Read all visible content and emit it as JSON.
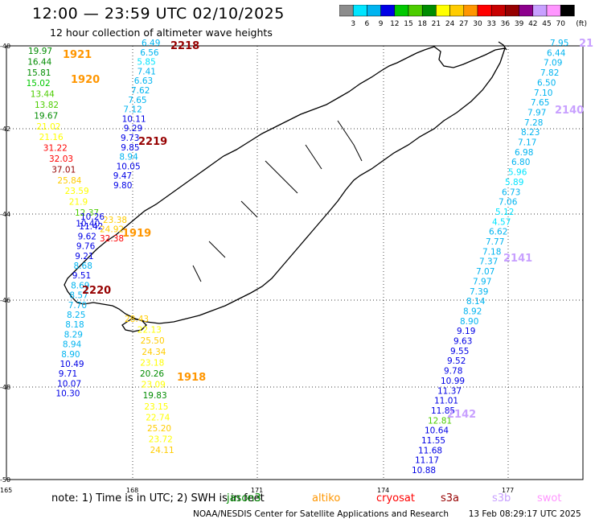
{
  "header": {
    "title": "12:00 — 23:59 UTC 02/10/2025",
    "subtitle": "12 hour collection of altimeter wave heights"
  },
  "colorbar": {
    "labels": [
      "3",
      "6",
      "9",
      "12",
      "15",
      "18",
      "21",
      "24",
      "27",
      "30",
      "33",
      "36",
      "39",
      "42",
      "45",
      "70"
    ],
    "unit": "(ft)",
    "colors": [
      "#8c8c8c",
      "#00e5ff",
      "#00b4f0",
      "#0000e6",
      "#00c800",
      "#4ccd00",
      "#008c00",
      "#ffff00",
      "#ffcc00",
      "#ff9600",
      "#ff0000",
      "#c80000",
      "#960000",
      "#8c008c",
      "#c8a0ff",
      "#ff96ff",
      "#000000"
    ]
  },
  "axes": {
    "lat_labels": [
      "-40",
      "-42",
      "-44",
      "-46",
      "-48",
      "-50"
    ],
    "lon_labels": [
      "165",
      "168",
      "171",
      "174",
      "177"
    ]
  },
  "tracks": [
    {
      "color": "#0a0a0a",
      "points": [
        {
          "v": "19.97",
          "c": "#008c00"
        },
        {
          "v": "16.44",
          "c": "#008c00"
        },
        {
          "v": "15.81",
          "c": "#008c00"
        },
        {
          "v": "15.02",
          "c": "#00c800"
        },
        {
          "v": "13.44",
          "c": "#4ccd00"
        },
        {
          "v": "13.82",
          "c": "#4ccd00"
        },
        {
          "v": "19.67",
          "c": "#008c00"
        },
        {
          "v": "21.02",
          "c": "#ffff00"
        },
        {
          "v": "21.16",
          "c": "#ffff00"
        },
        {
          "v": "31.22",
          "c": "#ff0000"
        },
        {
          "v": "32.03",
          "c": "#ff0000"
        },
        {
          "v": "37.01",
          "c": "#960000"
        },
        {
          "v": "25.84",
          "c": "#ffcc00"
        },
        {
          "v": "23.59",
          "c": "#ffff00"
        },
        {
          "v": "21.9",
          "c": "#ffff00"
        },
        {
          "v": "12.37",
          "c": "#4ccd00"
        },
        {
          "v": "10.40",
          "c": "#0000e6"
        }
      ]
    },
    {
      "points": [
        {
          "v": "6.49",
          "c": "#00b4f0"
        },
        {
          "v": "6.56",
          "c": "#00b4f0"
        },
        {
          "v": "5.85",
          "c": "#00e5ff"
        },
        {
          "v": "7.41",
          "c": "#00b4f0"
        },
        {
          "v": "6.63",
          "c": "#00b4f0"
        },
        {
          "v": "7.62",
          "c": "#00b4f0"
        },
        {
          "v": "7.65",
          "c": "#00b4f0"
        },
        {
          "v": "7.12",
          "c": "#00b4f0"
        },
        {
          "v": "10.11",
          "c": "#0000e6"
        },
        {
          "v": "9.29",
          "c": "#0000e6"
        },
        {
          "v": "9.73",
          "c": "#0000e6"
        },
        {
          "v": "9.85",
          "c": "#0000e6"
        },
        {
          "v": "8.94",
          "c": "#00b4f0"
        },
        {
          "v": "10.05",
          "c": "#0000e6"
        },
        {
          "v": "9.47",
          "c": "#0000e6"
        },
        {
          "v": "9.80",
          "c": "#0000e6"
        }
      ]
    },
    {
      "points": [
        {
          "v": "10.26",
          "c": "#0000e6"
        },
        {
          "v": "11.42",
          "c": "#0000e6"
        },
        {
          "v": "9.62",
          "c": "#0000e6"
        },
        {
          "v": "9.76",
          "c": "#0000e6"
        },
        {
          "v": "9.21",
          "c": "#0000e6"
        },
        {
          "v": "8.68",
          "c": "#00b4f0"
        },
        {
          "v": "9.51",
          "c": "#0000e6"
        },
        {
          "v": "8.69",
          "c": "#00b4f0"
        },
        {
          "v": "8.57",
          "c": "#00b4f0"
        },
        {
          "v": "7.70",
          "c": "#00b4f0"
        },
        {
          "v": "8.25",
          "c": "#00b4f0"
        },
        {
          "v": "8.18",
          "c": "#00b4f0"
        },
        {
          "v": "8.29",
          "c": "#00b4f0"
        },
        {
          "v": "8.94",
          "c": "#00b4f0"
        },
        {
          "v": "8.90",
          "c": "#00b4f0"
        },
        {
          "v": "10.49",
          "c": "#0000e6"
        },
        {
          "v": "9.71",
          "c": "#0000e6"
        },
        {
          "v": "10.07",
          "c": "#0000e6"
        },
        {
          "v": "10.30",
          "c": "#0000e6"
        }
      ]
    },
    {
      "points": [
        {
          "v": "23.38",
          "c": "#ffcc00"
        },
        {
          "v": "24.92",
          "c": "#ffcc00"
        },
        {
          "v": "32.38",
          "c": "#ff0000"
        }
      ]
    },
    {
      "points": [
        {
          "v": "28.43",
          "c": "#ffcc00"
        },
        {
          "v": "22.13",
          "c": "#ffff00"
        },
        {
          "v": "25.50",
          "c": "#ffcc00"
        },
        {
          "v": "24.34",
          "c": "#ffcc00"
        },
        {
          "v": "23.18",
          "c": "#ffff00"
        },
        {
          "v": "20.26",
          "c": "#008c00"
        },
        {
          "v": "23.09",
          "c": "#ffff00"
        },
        {
          "v": "19.83",
          "c": "#008c00"
        },
        {
          "v": "23.15",
          "c": "#ffff00"
        },
        {
          "v": "22.74",
          "c": "#ffff00"
        },
        {
          "v": "25.20",
          "c": "#ffcc00"
        },
        {
          "v": "23.72",
          "c": "#ffff00"
        },
        {
          "v": "24.11",
          "c": "#ffcc00"
        }
      ]
    },
    {
      "points": [
        {
          "v": "7.95",
          "c": "#00b4f0"
        },
        {
          "v": "6.44",
          "c": "#00b4f0"
        },
        {
          "v": "7.09",
          "c": "#00b4f0"
        },
        {
          "v": "7.82",
          "c": "#00b4f0"
        },
        {
          "v": "6.50",
          "c": "#00b4f0"
        },
        {
          "v": "7.10",
          "c": "#00b4f0"
        },
        {
          "v": "7.65",
          "c": "#00b4f0"
        },
        {
          "v": "7.97",
          "c": "#00b4f0"
        },
        {
          "v": "7.28",
          "c": "#00b4f0"
        },
        {
          "v": "8.23",
          "c": "#00b4f0"
        },
        {
          "v": "7.17",
          "c": "#00b4f0"
        },
        {
          "v": "6.98",
          "c": "#00b4f0"
        },
        {
          "v": "6.80",
          "c": "#00b4f0"
        },
        {
          "v": "5.96",
          "c": "#00e5ff"
        },
        {
          "v": "5.89",
          "c": "#00e5ff"
        },
        {
          "v": "6.73",
          "c": "#00b4f0"
        },
        {
          "v": "7.06",
          "c": "#00b4f0"
        },
        {
          "v": "5.12",
          "c": "#00e5ff"
        },
        {
          "v": "4.57",
          "c": "#00e5ff"
        },
        {
          "v": "6.62",
          "c": "#00b4f0"
        },
        {
          "v": "7.77",
          "c": "#00b4f0"
        },
        {
          "v": "7.18",
          "c": "#00b4f0"
        },
        {
          "v": "7.37",
          "c": "#00b4f0"
        },
        {
          "v": "7.07",
          "c": "#00b4f0"
        },
        {
          "v": "7.97",
          "c": "#00b4f0"
        },
        {
          "v": "7.39",
          "c": "#00b4f0"
        },
        {
          "v": "8.14",
          "c": "#00b4f0"
        },
        {
          "v": "8.92",
          "c": "#00b4f0"
        },
        {
          "v": "8.90",
          "c": "#00b4f0"
        },
        {
          "v": "9.19",
          "c": "#0000e6"
        },
        {
          "v": "9.63",
          "c": "#0000e6"
        },
        {
          "v": "9.55",
          "c": "#0000e6"
        },
        {
          "v": "9.52",
          "c": "#0000e6"
        },
        {
          "v": "9.78",
          "c": "#0000e6"
        },
        {
          "v": "10.99",
          "c": "#0000e6"
        },
        {
          "v": "11.37",
          "c": "#0000e6"
        },
        {
          "v": "11.01",
          "c": "#0000e6"
        },
        {
          "v": "11.85",
          "c": "#0000e6"
        },
        {
          "v": "12.81",
          "c": "#4ccd00"
        },
        {
          "v": "10.64",
          "c": "#0000e6"
        },
        {
          "v": "11.55",
          "c": "#0000e6"
        },
        {
          "v": "11.68",
          "c": "#0000e6"
        },
        {
          "v": "11.17",
          "c": "#0000e6"
        },
        {
          "v": "10.88",
          "c": "#0000e6"
        }
      ]
    }
  ],
  "time_labels": [
    {
      "t": "2218",
      "c": "#960000"
    },
    {
      "t": "1921",
      "c": "#ff9600"
    },
    {
      "t": "1920",
      "c": "#ff9600"
    },
    {
      "t": "2219",
      "c": "#960000"
    },
    {
      "t": "1919",
      "c": "#ff9600"
    },
    {
      "t": "2220",
      "c": "#960000"
    },
    {
      "t": "1918",
      "c": "#ff9600"
    },
    {
      "t": "2140",
      "c": "#c8a0ff"
    },
    {
      "t": "2141",
      "c": "#c8a0ff"
    },
    {
      "t": "2142",
      "c": "#c8a0ff"
    },
    {
      "t": "21",
      "c": "#c8a0ff"
    }
  ],
  "footer": {
    "note": "note:  1) Time is in UTC; 2) SWH is in feet",
    "legend": [
      {
        "name": "jason3",
        "c": "#008c00"
      },
      {
        "name": "altiko",
        "c": "#ff9600"
      },
      {
        "name": "cryosat",
        "c": "#ff0000"
      },
      {
        "name": "s3a",
        "c": "#960000"
      },
      {
        "name": "s3b",
        "c": "#c8a0ff"
      },
      {
        "name": "swot",
        "c": "#ff96ff"
      }
    ],
    "credit": "NOAA/NESDIS Center for Satellite Applications and Research",
    "timestamp": "13 Feb 08:29:17 UTC 2025"
  }
}
